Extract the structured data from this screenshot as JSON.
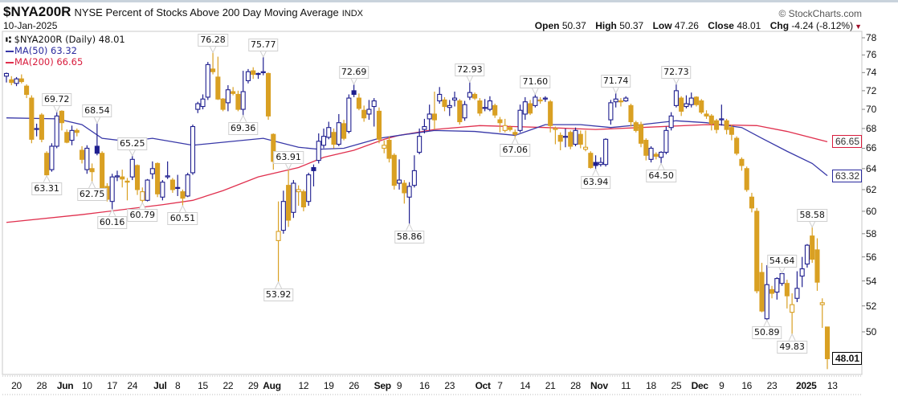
{
  "header": {
    "symbol": "$NYA200R",
    "name": "NYSE Percent of Stocks Above 200 Day Moving Average",
    "exchange": "INDX",
    "date": "10-Jan-2025",
    "brand": "© StockCharts.com",
    "open_label": "Open",
    "open": "50.37",
    "high_label": "High",
    "high": "50.37",
    "low_label": "Low",
    "low": "47.26",
    "close_label": "Close",
    "close": "48.01",
    "chg_label": "Chg",
    "chg": "-4.24 (-8.12%)",
    "chg_arrow": "▼"
  },
  "legend": {
    "main": "$NYA200R (Daily) 48.01",
    "ma50": "MA(50) 63.32",
    "ma200": "MA(200) 66.65"
  },
  "colors": {
    "up": "#1f1f8f",
    "down": "#d9a023",
    "ma50": "#3838a8",
    "ma200": "#e0304e"
  },
  "chart_data": {
    "type": "candlestick",
    "title": "$NYA200R NYSE Percent of Stocks Above 200 Day Moving Average",
    "y_scale": "log",
    "ylim": [
      46.5,
      78.5
    ],
    "y_ticks": [
      78,
      76,
      74,
      72,
      70,
      68,
      66,
      64,
      62,
      60,
      58,
      56,
      54,
      52,
      50
    ],
    "x_ticks": [
      {
        "i": 2,
        "label": "20"
      },
      {
        "i": 7,
        "label": "28"
      },
      {
        "i": 11,
        "label": "Jun",
        "major": true
      },
      {
        "i": 16,
        "label": "10"
      },
      {
        "i": 21,
        "label": "17"
      },
      {
        "i": 25,
        "label": "24"
      },
      {
        "i": 30,
        "label": "Jul",
        "major": true
      },
      {
        "i": 34,
        "label": "8"
      },
      {
        "i": 39,
        "label": "15"
      },
      {
        "i": 44,
        "label": "22"
      },
      {
        "i": 49,
        "label": "29"
      },
      {
        "i": 52,
        "label": "Aug",
        "major": true
      },
      {
        "i": 59,
        "label": "12"
      },
      {
        "i": 64,
        "label": "19"
      },
      {
        "i": 69,
        "label": "26"
      },
      {
        "i": 74,
        "label": "Sep",
        "major": true
      },
      {
        "i": 78,
        "label": "9"
      },
      {
        "i": 83,
        "label": "16"
      },
      {
        "i": 88,
        "label": "23"
      },
      {
        "i": 94,
        "label": "Oct",
        "major": true
      },
      {
        "i": 98,
        "label": "7"
      },
      {
        "i": 103,
        "label": "14"
      },
      {
        "i": 108,
        "label": "21"
      },
      {
        "i": 113,
        "label": "28"
      },
      {
        "i": 117,
        "label": "Nov",
        "major": true
      },
      {
        "i": 123,
        "label": "11"
      },
      {
        "i": 128,
        "label": "18"
      },
      {
        "i": 133,
        "label": "25"
      },
      {
        "i": 137,
        "label": "Dec",
        "major": true
      },
      {
        "i": 142,
        "label": "9"
      },
      {
        "i": 147,
        "label": "16"
      },
      {
        "i": 152,
        "label": "23"
      },
      {
        "i": 158,
        "label": "2025",
        "major": true
      },
      {
        "i": 164,
        "label": "13"
      }
    ],
    "ohlc": [
      [
        73.6,
        74.0,
        72.9,
        73.9
      ],
      [
        73.2,
        73.6,
        72.6,
        72.9
      ],
      [
        72.8,
        73.5,
        72.5,
        73.3
      ],
      [
        73.3,
        73.8,
        72.8,
        73.0
      ],
      [
        72.5,
        72.7,
        71.2,
        71.6
      ],
      [
        71.2,
        71.5,
        66.5,
        66.9
      ],
      [
        67.9,
        68.5,
        67.2,
        68.0
      ],
      [
        69.4,
        69.6,
        66.6,
        66.9
      ],
      [
        65.5,
        65.7,
        63.31,
        63.4
      ],
      [
        63.9,
        66.5,
        63.7,
        66.2
      ],
      [
        66.2,
        69.72,
        66.0,
        69.3
      ],
      [
        69.8,
        69.9,
        67.8,
        68.6
      ],
      [
        67.6,
        67.9,
        66.5,
        66.6
      ],
      [
        66.8,
        68.3,
        66.3,
        67.8
      ],
      [
        67.8,
        68.0,
        67.2,
        67.6
      ],
      [
        65.8,
        66.2,
        64.5,
        64.9
      ],
      [
        63.9,
        66.3,
        63.5,
        66.0
      ],
      [
        64.0,
        64.5,
        62.75,
        63.7
      ],
      [
        66.2,
        68.54,
        65.3,
        65.5
      ],
      [
        65.5,
        65.7,
        61.5,
        61.9
      ],
      [
        62.3,
        62.6,
        60.9,
        61.1
      ],
      [
        60.9,
        63.5,
        60.16,
        63.2
      ],
      [
        63.2,
        63.8,
        62.8,
        63.3
      ],
      [
        63.2,
        63.9,
        62.2,
        63.0
      ],
      [
        62.8,
        63.1,
        61.0,
        62.7
      ],
      [
        63.2,
        65.25,
        62.9,
        64.9
      ],
      [
        64.3,
        64.4,
        61.5,
        62.0
      ],
      [
        61.0,
        62.2,
        60.79,
        61.8
      ],
      [
        61.0,
        63.0,
        60.9,
        62.9
      ],
      [
        63.5,
        64.7,
        63.0,
        64.0
      ],
      [
        64.5,
        64.6,
        61.3,
        61.6
      ],
      [
        61.3,
        62.9,
        61.0,
        62.7
      ],
      [
        63.2,
        64.7,
        63.0,
        63.3
      ],
      [
        62.9,
        63.1,
        61.7,
        62.0
      ],
      [
        62.2,
        63.4,
        61.4,
        62.2
      ],
      [
        61.8,
        62.0,
        60.51,
        61.2
      ],
      [
        61.4,
        63.6,
        61.3,
        63.4
      ],
      [
        63.6,
        68.4,
        63.4,
        68.2
      ],
      [
        70.0,
        70.8,
        69.6,
        70.6
      ],
      [
        70.3,
        71.6,
        70.0,
        71.1
      ],
      [
        71.3,
        75.2,
        71.0,
        74.9
      ],
      [
        74.4,
        76.28,
        73.8,
        74.1
      ],
      [
        73.5,
        75.8,
        71.0,
        71.1
      ],
      [
        71.1,
        71.2,
        69.8,
        70.0
      ],
      [
        70.7,
        72.6,
        69.8,
        72.1
      ],
      [
        71.9,
        72.4,
        71.5,
        71.7
      ],
      [
        71.6,
        72.0,
        69.8,
        70.0
      ],
      [
        70.0,
        74.2,
        69.36,
        71.9
      ],
      [
        73.1,
        74.4,
        72.8,
        74.1
      ],
      [
        74.2,
        74.6,
        73.3,
        73.8
      ],
      [
        73.9,
        74.0,
        73.3,
        73.9
      ],
      [
        74.0,
        75.77,
        73.7,
        74.1
      ],
      [
        73.9,
        74.0,
        68.9,
        69.3
      ],
      [
        67.4,
        67.5,
        63.9,
        64.7
      ],
      [
        57.4,
        60.9,
        53.92,
        58.2
      ],
      [
        58.3,
        61.9,
        58.0,
        60.9
      ],
      [
        62.4,
        63.91,
        58.6,
        59.2
      ],
      [
        59.9,
        62.9,
        59.4,
        62.6
      ],
      [
        61.8,
        62.4,
        60.5,
        62.0
      ],
      [
        61.8,
        62.0,
        60.0,
        60.4
      ],
      [
        60.9,
        63.6,
        60.5,
        63.4
      ],
      [
        64.1,
        64.4,
        62.3,
        63.8
      ],
      [
        64.8,
        67.5,
        64.5,
        66.7
      ],
      [
        66.3,
        68.0,
        66.0,
        67.2
      ],
      [
        67.1,
        68.7,
        66.9,
        68.1
      ],
      [
        67.6,
        68.0,
        66.0,
        66.4
      ],
      [
        66.4,
        69.5,
        66.2,
        68.6
      ],
      [
        68.5,
        68.9,
        66.8,
        67.0
      ],
      [
        67.7,
        71.6,
        67.5,
        71.2
      ],
      [
        72.0,
        72.69,
        71.3,
        71.6
      ],
      [
        71.2,
        71.7,
        69.9,
        70.1
      ],
      [
        69.9,
        70.4,
        68.7,
        69.1
      ],
      [
        69.5,
        71.0,
        68.9,
        70.0
      ],
      [
        70.3,
        71.2,
        68.2,
        70.9
      ],
      [
        69.8,
        70.2,
        66.5,
        66.9
      ],
      [
        66.0,
        66.8,
        65.5,
        66.3
      ],
      [
        66.8,
        67.2,
        64.6,
        65.0
      ],
      [
        65.3,
        65.5,
        62.0,
        62.4
      ],
      [
        62.6,
        64.9,
        62.0,
        62.9
      ],
      [
        62.6,
        62.9,
        60.7,
        61.7
      ],
      [
        61.3,
        62.7,
        58.86,
        62.3
      ],
      [
        62.4,
        65.3,
        62.2,
        63.8
      ],
      [
        65.6,
        68.0,
        65.4,
        67.2
      ],
      [
        67.9,
        69.0,
        67.5,
        68.2
      ],
      [
        69.0,
        70.5,
        67.8,
        69.5
      ],
      [
        69.5,
        71.9,
        67.9,
        68.9
      ],
      [
        70.9,
        72.4,
        70.6,
        71.6
      ],
      [
        71.0,
        71.3,
        69.8,
        70.3
      ],
      [
        70.2,
        71.0,
        69.3,
        70.4
      ],
      [
        71.0,
        71.9,
        70.3,
        71.2
      ],
      [
        70.9,
        71.1,
        68.4,
        68.7
      ],
      [
        69.1,
        70.9,
        68.8,
        70.5
      ],
      [
        71.3,
        72.93,
        71.0,
        71.8
      ],
      [
        71.6,
        71.8,
        71.0,
        71.2
      ],
      [
        70.9,
        71.2,
        69.3,
        69.6
      ],
      [
        70.1,
        71.1,
        69.8,
        70.2
      ],
      [
        70.0,
        71.4,
        69.8,
        70.9
      ],
      [
        70.4,
        70.6,
        69.1,
        69.4
      ],
      [
        68.9,
        69.2,
        67.6,
        68.6
      ],
      [
        67.8,
        69.0,
        67.6,
        68.3
      ],
      [
        68.1,
        68.3,
        67.7,
        67.9
      ],
      [
        67.6,
        67.9,
        67.06,
        67.4
      ],
      [
        67.8,
        70.5,
        67.6,
        69.9
      ],
      [
        69.5,
        71.3,
        68.9,
        70.8
      ],
      [
        70.6,
        71.0,
        69.4,
        69.6
      ],
      [
        70.4,
        71.6,
        70.2,
        71.3
      ],
      [
        70.9,
        71.3,
        70.6,
        71.0
      ],
      [
        71.1,
        71.4,
        70.8,
        71.2
      ],
      [
        70.8,
        71.0,
        67.6,
        68.3
      ],
      [
        67.9,
        68.2,
        66.4,
        68.0
      ],
      [
        67.3,
        67.6,
        65.8,
        66.7
      ],
      [
        67.1,
        68.0,
        66.1,
        67.2
      ],
      [
        67.6,
        67.8,
        65.9,
        66.2
      ],
      [
        66.4,
        68.1,
        66.2,
        67.8
      ],
      [
        67.4,
        67.8,
        66.0,
        66.4
      ],
      [
        65.9,
        67.8,
        65.7,
        66.1
      ],
      [
        65.5,
        65.7,
        64.0,
        64.1
      ],
      [
        64.6,
        65.3,
        63.94,
        64.3
      ],
      [
        64.4,
        65.1,
        64.2,
        64.6
      ],
      [
        64.4,
        67.0,
        64.2,
        66.9
      ],
      [
        68.9,
        71.0,
        68.4,
        70.7
      ],
      [
        70.8,
        71.74,
        70.2,
        71.1
      ],
      [
        70.9,
        71.2,
        70.3,
        70.8
      ],
      [
        70.9,
        71.4,
        70.8,
        71.2
      ],
      [
        70.4,
        70.6,
        68.2,
        68.7
      ],
      [
        68.6,
        68.8,
        67.6,
        67.8
      ],
      [
        68.4,
        68.7,
        66.1,
        66.5
      ],
      [
        66.8,
        67.0,
        64.8,
        65.3
      ],
      [
        64.9,
        66.2,
        64.6,
        66.0
      ],
      [
        65.4,
        65.6,
        64.9,
        65.2
      ],
      [
        65.1,
        65.7,
        64.5,
        65.6
      ],
      [
        65.6,
        68.2,
        65.4,
        67.8
      ],
      [
        68.1,
        69.7,
        67.8,
        69.3
      ],
      [
        70.4,
        72.73,
        70.2,
        72.0
      ],
      [
        71.2,
        71.4,
        69.3,
        69.8
      ],
      [
        70.3,
        71.5,
        70.1,
        70.6
      ],
      [
        70.5,
        71.8,
        70.2,
        71.2
      ],
      [
        71.3,
        71.4,
        70.3,
        70.5
      ],
      [
        70.9,
        71.1,
        69.5,
        69.7
      ],
      [
        69.5,
        69.9,
        69.0,
        69.3
      ],
      [
        69.3,
        69.5,
        67.8,
        68.5
      ],
      [
        68.8,
        69.0,
        67.5,
        67.9
      ],
      [
        68.9,
        70.5,
        68.3,
        69.0
      ],
      [
        68.8,
        69.0,
        67.4,
        67.9
      ],
      [
        68.1,
        68.4,
        66.8,
        67.4
      ],
      [
        67.0,
        67.2,
        65.3,
        65.5
      ],
      [
        64.9,
        65.1,
        63.8,
        64.3
      ],
      [
        64.0,
        64.2,
        61.8,
        62.0
      ],
      [
        61.3,
        61.7,
        59.9,
        60.3
      ],
      [
        60.0,
        60.3,
        53.0,
        53.2
      ],
      [
        54.7,
        55.5,
        51.5,
        51.6
      ],
      [
        51.0,
        55.3,
        50.89,
        53.7
      ],
      [
        53.3,
        53.6,
        52.6,
        53.0
      ],
      [
        53.1,
        54.3,
        52.5,
        54.2
      ],
      [
        53.8,
        54.64,
        53.6,
        54.6
      ],
      [
        53.8,
        54.1,
        51.8,
        52.8
      ],
      [
        51.5,
        53.0,
        49.83,
        52.1
      ],
      [
        52.6,
        54.8,
        52.3,
        53.4
      ],
      [
        54.4,
        56.0,
        53.5,
        55.0
      ],
      [
        55.4,
        57.1,
        55.1,
        57.0
      ],
      [
        57.8,
        58.58,
        55.5,
        55.8
      ],
      [
        56.6,
        57.6,
        53.2,
        53.9
      ],
      [
        52.1,
        52.6,
        50.3,
        52.25
      ],
      [
        50.37,
        50.37,
        47.26,
        48.01
      ]
    ],
    "ma50": [
      [
        0,
        69.1
      ],
      [
        10,
        69.0
      ],
      [
        15,
        68.4
      ],
      [
        19,
        67.0
      ],
      [
        24,
        66.7
      ],
      [
        29,
        67.0
      ],
      [
        37,
        66.3
      ],
      [
        51,
        67.0
      ],
      [
        58,
        66.1
      ],
      [
        62,
        65.9
      ],
      [
        67,
        66.0
      ],
      [
        74,
        67.0
      ],
      [
        78,
        67.3
      ],
      [
        85,
        67.8
      ],
      [
        93,
        67.7
      ],
      [
        101,
        67.3
      ],
      [
        107,
        68.4
      ],
      [
        114,
        68.4
      ],
      [
        120,
        68.1
      ],
      [
        126,
        68.4
      ],
      [
        133,
        68.8
      ],
      [
        139,
        68.6
      ],
      [
        146,
        68.1
      ],
      [
        150,
        67.0
      ],
      [
        155,
        65.7
      ],
      [
        160,
        64.5
      ],
      [
        163,
        63.32
      ]
    ],
    "ma200": [
      [
        0,
        59.0
      ],
      [
        15,
        59.7
      ],
      [
        31,
        60.6
      ],
      [
        37,
        61.0
      ],
      [
        43,
        61.9
      ],
      [
        50,
        63.2
      ],
      [
        58,
        64.1
      ],
      [
        63,
        65.1
      ],
      [
        69,
        65.8
      ],
      [
        75,
        66.9
      ],
      [
        78,
        67.3
      ],
      [
        85,
        67.9
      ],
      [
        94,
        68.3
      ],
      [
        107,
        68.1
      ],
      [
        117,
        67.9
      ],
      [
        126,
        68.1
      ],
      [
        139,
        68.4
      ],
      [
        149,
        68.3
      ],
      [
        155,
        67.7
      ],
      [
        163,
        66.65
      ]
    ],
    "annotations": [
      {
        "i": 10,
        "label": "69.72",
        "pos": "above"
      },
      {
        "i": 8,
        "label": "63.31",
        "pos": "below"
      },
      {
        "i": 18,
        "label": "68.54",
        "pos": "above"
      },
      {
        "i": 17,
        "label": "62.75",
        "pos": "below"
      },
      {
        "i": 21,
        "label": "60.16",
        "pos": "below"
      },
      {
        "i": 25,
        "label": "65.25",
        "pos": "above"
      },
      {
        "i": 27,
        "label": "60.79",
        "pos": "below"
      },
      {
        "i": 35,
        "label": "60.51",
        "pos": "below"
      },
      {
        "i": 41,
        "label": "76.28",
        "pos": "above"
      },
      {
        "i": 47,
        "label": "69.36",
        "pos": "below"
      },
      {
        "i": 51,
        "label": "75.77",
        "pos": "above"
      },
      {
        "i": 56,
        "label": "63.91",
        "pos": "above"
      },
      {
        "i": 54,
        "label": "53.92",
        "pos": "below"
      },
      {
        "i": 69,
        "label": "72.69",
        "pos": "above"
      },
      {
        "i": 80,
        "label": "58.86",
        "pos": "below"
      },
      {
        "i": 92,
        "label": "72.93",
        "pos": "above"
      },
      {
        "i": 101,
        "label": "67.06",
        "pos": "below"
      },
      {
        "i": 105,
        "label": "71.60",
        "pos": "above"
      },
      {
        "i": 117,
        "label": "63.94",
        "pos": "below"
      },
      {
        "i": 121,
        "label": "71.74",
        "pos": "above"
      },
      {
        "i": 130,
        "label": "64.50",
        "pos": "below"
      },
      {
        "i": 133,
        "label": "72.73",
        "pos": "above"
      },
      {
        "i": 151,
        "label": "50.89",
        "pos": "below"
      },
      {
        "i": 154,
        "label": "54.64",
        "pos": "above"
      },
      {
        "i": 156,
        "label": "49.83",
        "pos": "below"
      },
      {
        "i": 160,
        "label": "58.58",
        "pos": "above"
      }
    ],
    "last_value_tags": {
      "ma200": "66.65",
      "ma50": "63.32",
      "close": "48.01"
    }
  }
}
